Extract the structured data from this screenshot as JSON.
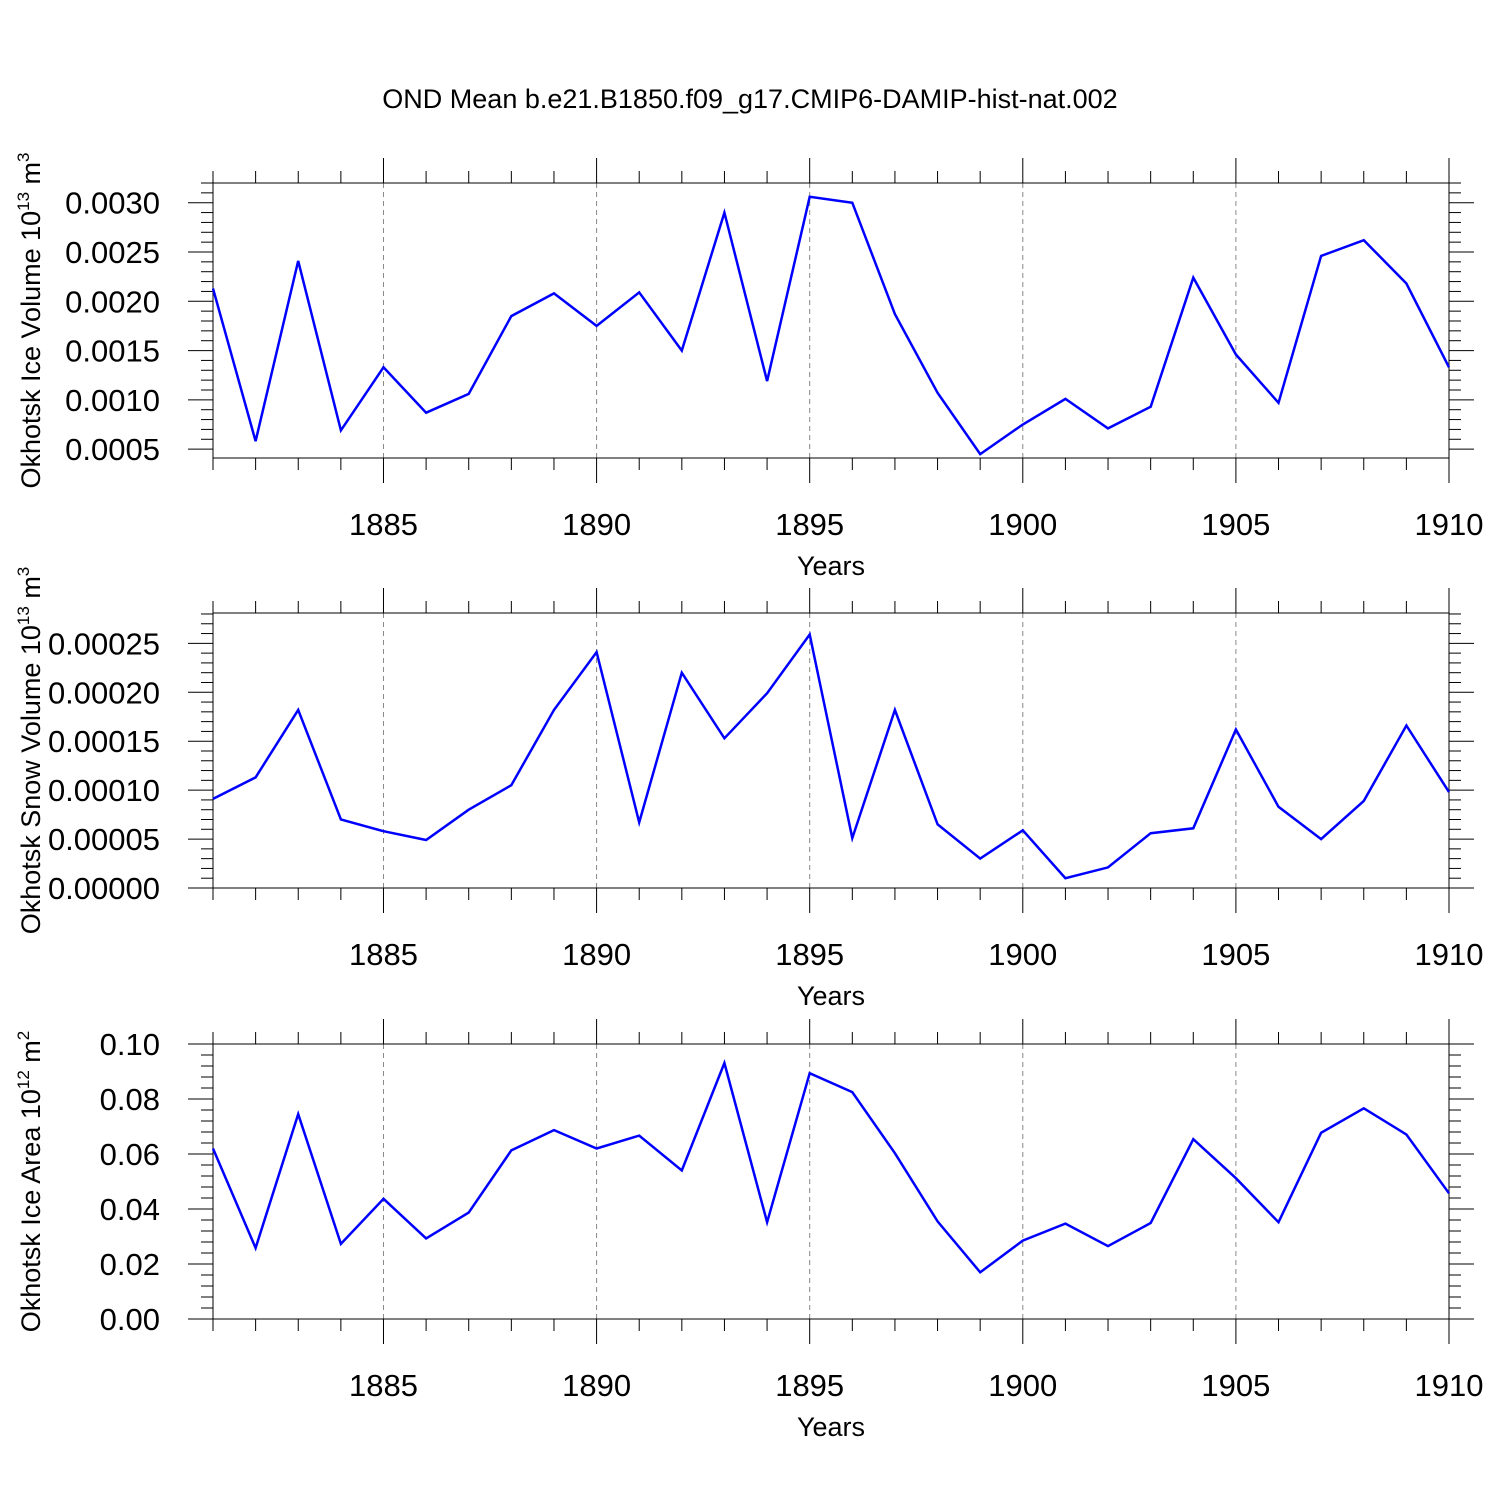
{
  "title": "OND Mean b.e21.B1850.f09_g17.CMIP6-DAMIP-hist-nat.002",
  "line_color": "#0000ff",
  "chart_data": [
    {
      "type": "line",
      "x": [
        1881,
        1882,
        1883,
        1884,
        1885,
        1886,
        1887,
        1888,
        1889,
        1890,
        1891,
        1892,
        1893,
        1894,
        1895,
        1896,
        1897,
        1898,
        1899,
        1900,
        1901,
        1902,
        1903,
        1904,
        1905,
        1906,
        1907,
        1908,
        1909,
        1910
      ],
      "series": [
        {
          "name": "Okhotsk Ice Volume",
          "values": [
            0.00213,
            0.00058,
            0.00241,
            0.00069,
            0.00133,
            0.00087,
            0.00106,
            0.00185,
            0.00208,
            0.00175,
            0.00209,
            0.0015,
            0.0029,
            0.00119,
            0.00306,
            0.003,
            0.00187,
            0.00107,
            0.00045,
            0.00075,
            0.00101,
            0.00071,
            0.00093,
            0.00224,
            0.00146,
            0.00097,
            0.00246,
            0.00262,
            0.00218,
            0.00133
          ]
        }
      ],
      "xlim": [
        1881,
        1910
      ],
      "ylim": [
        0.00041,
        0.0032
      ],
      "xticks": [
        1885,
        1890,
        1895,
        1900,
        1905,
        1910
      ],
      "xticklabels": [
        "1885",
        "1890",
        "1895",
        "1900",
        "1905",
        "1910"
      ],
      "yticks": [
        0.0005,
        0.001,
        0.0015,
        0.002,
        0.0025,
        0.003
      ],
      "yticklabels": [
        "0.0005",
        "0.0010",
        "0.0015",
        "0.0020",
        "0.0025",
        "0.0030"
      ],
      "yminor_step": 0.0001,
      "xlabel": "Years",
      "ylabel": {
        "text": "Okhotsk Ice Volume 10",
        "exp": "13",
        "unit": " m",
        "unit_exp": "3"
      }
    },
    {
      "type": "line",
      "x": [
        1881,
        1882,
        1883,
        1884,
        1885,
        1886,
        1887,
        1888,
        1889,
        1890,
        1891,
        1892,
        1893,
        1894,
        1895,
        1896,
        1897,
        1898,
        1899,
        1900,
        1901,
        1902,
        1903,
        1904,
        1905,
        1906,
        1907,
        1908,
        1909,
        1910
      ],
      "series": [
        {
          "name": "Okhotsk Snow Volume",
          "values": [
            9.1e-05,
            0.000113,
            0.000182,
            7e-05,
            5.8e-05,
            4.9e-05,
            8e-05,
            0.000105,
            0.000182,
            0.000241,
            6.7e-05,
            0.00022,
            0.000153,
            0.000199,
            0.000259,
            5.1e-05,
            0.000182,
            6.5e-05,
            3e-05,
            5.9e-05,
            1e-05,
            2.1e-05,
            5.6e-05,
            6.1e-05,
            0.000162,
            8.3e-05,
            5e-05,
            8.9e-05,
            0.000166,
            9.8e-05
          ]
        }
      ],
      "xlim": [
        1881,
        1910
      ],
      "ylim": [
        0.0,
        0.000281
      ],
      "xticks": [
        1885,
        1890,
        1895,
        1900,
        1905,
        1910
      ],
      "xticklabels": [
        "1885",
        "1890",
        "1895",
        "1900",
        "1905",
        "1910"
      ],
      "yticks": [
        0.0,
        5e-05,
        0.0001,
        0.00015,
        0.0002,
        0.00025
      ],
      "yticklabels": [
        "0.00000",
        "0.00005",
        "0.00010",
        "0.00015",
        "0.00020",
        "0.00025"
      ],
      "yminor_step": 1e-05,
      "xlabel": "Years",
      "ylabel": {
        "text": "Okhotsk Snow Volume 10",
        "exp": "13",
        "unit": " m",
        "unit_exp": "3"
      }
    },
    {
      "type": "line",
      "x": [
        1881,
        1882,
        1883,
        1884,
        1885,
        1886,
        1887,
        1888,
        1889,
        1890,
        1891,
        1892,
        1893,
        1894,
        1895,
        1896,
        1897,
        1898,
        1899,
        1900,
        1901,
        1902,
        1903,
        1904,
        1905,
        1906,
        1907,
        1908,
        1909,
        1910
      ],
      "series": [
        {
          "name": "Okhotsk Ice Area",
          "values": [
            0.062,
            0.0258,
            0.0745,
            0.0273,
            0.0437,
            0.0293,
            0.0387,
            0.0613,
            0.0687,
            0.062,
            0.0667,
            0.054,
            0.0931,
            0.0352,
            0.0894,
            0.0825,
            0.0603,
            0.0355,
            0.017,
            0.0285,
            0.0347,
            0.0265,
            0.0349,
            0.0654,
            0.0512,
            0.0352,
            0.0677,
            0.0766,
            0.0671,
            0.0457
          ]
        }
      ],
      "xlim": [
        1881,
        1910
      ],
      "ylim": [
        0.0,
        0.1
      ],
      "xticks": [
        1885,
        1890,
        1895,
        1900,
        1905,
        1910
      ],
      "xticklabels": [
        "1885",
        "1890",
        "1895",
        "1900",
        "1905",
        "1910"
      ],
      "yticks": [
        0.0,
        0.02,
        0.04,
        0.06,
        0.08,
        0.1
      ],
      "yticklabels": [
        "0.00",
        "0.02",
        "0.04",
        "0.06",
        "0.08",
        "0.10"
      ],
      "yminor_step": 0.004,
      "xlabel": "Years",
      "ylabel": {
        "text": "Okhotsk Ice Area 10",
        "exp": "12",
        "unit": " m",
        "unit_exp": "2"
      }
    }
  ]
}
